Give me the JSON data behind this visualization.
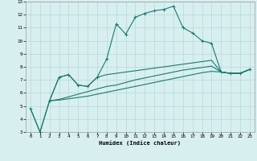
{
  "xlabel": "Humidex (Indice chaleur)",
  "xlim": [
    -0.5,
    23.5
  ],
  "ylim": [
    3,
    13
  ],
  "xticks": [
    0,
    1,
    2,
    3,
    4,
    5,
    6,
    7,
    8,
    9,
    10,
    11,
    12,
    13,
    14,
    15,
    16,
    17,
    18,
    19,
    20,
    21,
    22,
    23
  ],
  "yticks": [
    3,
    4,
    5,
    6,
    7,
    8,
    9,
    10,
    11,
    12,
    13
  ],
  "bg_color": "#d8eff0",
  "line_color": "#1a7a6e",
  "grid_color": "#b8d8da",
  "line1_x": [
    0,
    1,
    2,
    3,
    4,
    5,
    6,
    7,
    8,
    9,
    10,
    11,
    12,
    13,
    14,
    15,
    16,
    17,
    18,
    19,
    20,
    21,
    22,
    23
  ],
  "line1_y": [
    4.8,
    3.0,
    5.4,
    7.2,
    7.4,
    6.6,
    6.5,
    7.2,
    8.6,
    11.3,
    10.5,
    11.8,
    12.1,
    12.3,
    12.4,
    12.65,
    11.0,
    10.6,
    10.0,
    9.8,
    7.6,
    7.5,
    7.5,
    7.8
  ],
  "line2_x": [
    0,
    1,
    2,
    3,
    4,
    5,
    6,
    7,
    8,
    9,
    10,
    11,
    12,
    13,
    14,
    15,
    16,
    17,
    18,
    19,
    20,
    21,
    22,
    23
  ],
  "line2_y": [
    4.8,
    3.0,
    5.4,
    7.2,
    7.4,
    6.6,
    6.5,
    7.2,
    7.4,
    7.5,
    7.6,
    7.7,
    7.8,
    7.9,
    8.0,
    8.1,
    8.2,
    8.3,
    8.4,
    8.5,
    7.6,
    7.5,
    7.5,
    7.8
  ],
  "line3_x": [
    2,
    3,
    4,
    5,
    6,
    7,
    8,
    9,
    10,
    11,
    12,
    13,
    14,
    15,
    16,
    17,
    18,
    19,
    20,
    21,
    22,
    23
  ],
  "line3_y": [
    5.4,
    5.5,
    5.7,
    5.9,
    6.1,
    6.3,
    6.5,
    6.6,
    6.8,
    7.0,
    7.15,
    7.3,
    7.45,
    7.6,
    7.75,
    7.85,
    7.95,
    8.05,
    7.6,
    7.5,
    7.5,
    7.8
  ],
  "line4_x": [
    2,
    3,
    4,
    5,
    6,
    7,
    8,
    9,
    10,
    11,
    12,
    13,
    14,
    15,
    16,
    17,
    18,
    19,
    20,
    21,
    22,
    23
  ],
  "line4_y": [
    5.4,
    5.45,
    5.55,
    5.65,
    5.75,
    5.9,
    6.05,
    6.2,
    6.35,
    6.5,
    6.65,
    6.8,
    6.95,
    7.1,
    7.25,
    7.4,
    7.55,
    7.65,
    7.6,
    7.5,
    7.5,
    7.8
  ]
}
